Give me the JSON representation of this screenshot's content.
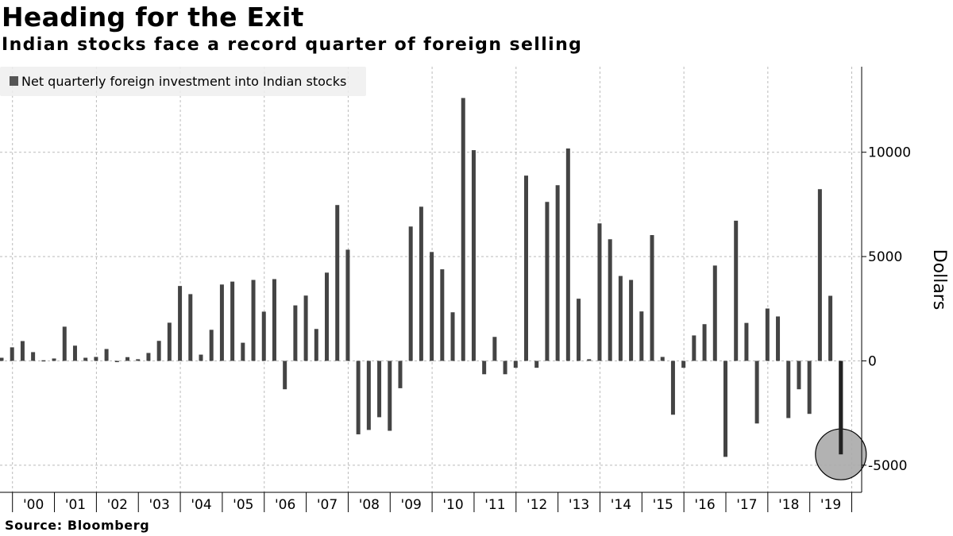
{
  "title": "Heading for the Exit",
  "subtitle": "Indian stocks face a record quarter of foreign selling",
  "source": "Source: Bloomberg",
  "colors": {
    "bar": "#444444",
    "highlight_circle": "#aaaaaa",
    "legend_bg": "#eeeeee",
    "grid": "#bbbbbb"
  },
  "chart_data": {
    "type": "bar",
    "title": "Heading for the Exit",
    "subtitle": "Indian stocks face a record quarter of foreign selling",
    "ylabel": "Dollars",
    "xlabel": "",
    "legend": {
      "entries": [
        "Net quarterly foreign investment into Indian stocks"
      ],
      "placement": "top-left"
    },
    "grid": true,
    "ylim": [
      -6300,
      14100
    ],
    "y_ticks": [
      10000,
      5000,
      0,
      -5000
    ],
    "y_tick_labels": [
      "10000",
      "5000",
      "0",
      "-5000"
    ],
    "y_axis_side": "right",
    "x_tick_labels": [
      "'00",
      "'01",
      "'02",
      "'03",
      "'04",
      "'05",
      "'06",
      "'07",
      "'08",
      "'09",
      "'10",
      "'11",
      "'12",
      "'13",
      "'14",
      "'15",
      "'16",
      "'17",
      "'18",
      "'19"
    ],
    "series": [
      {
        "name": "Net quarterly foreign investment into Indian stocks",
        "x": [
          "1999-Q4",
          "2000-Q1",
          "2000-Q2",
          "2000-Q3",
          "2000-Q4",
          "2001-Q1",
          "2001-Q2",
          "2001-Q3",
          "2001-Q4",
          "2002-Q1",
          "2002-Q2",
          "2002-Q3",
          "2002-Q4",
          "2003-Q1",
          "2003-Q2",
          "2003-Q3",
          "2003-Q4",
          "2004-Q1",
          "2004-Q2",
          "2004-Q3",
          "2004-Q4",
          "2005-Q1",
          "2005-Q2",
          "2005-Q3",
          "2005-Q4",
          "2006-Q1",
          "2006-Q2",
          "2006-Q3",
          "2006-Q4",
          "2007-Q1",
          "2007-Q2",
          "2007-Q3",
          "2007-Q4",
          "2008-Q1",
          "2008-Q2",
          "2008-Q3",
          "2008-Q4",
          "2009-Q1",
          "2009-Q2",
          "2009-Q3",
          "2009-Q4",
          "2010-Q1",
          "2010-Q2",
          "2010-Q3",
          "2010-Q4",
          "2011-Q1",
          "2011-Q2",
          "2011-Q3",
          "2011-Q4",
          "2012-Q1",
          "2012-Q2",
          "2012-Q3",
          "2012-Q4",
          "2013-Q1",
          "2013-Q2",
          "2013-Q3",
          "2013-Q4",
          "2014-Q1",
          "2014-Q2",
          "2014-Q3",
          "2014-Q4",
          "2015-Q1",
          "2015-Q2",
          "2015-Q3",
          "2015-Q4",
          "2016-Q1",
          "2016-Q2",
          "2016-Q3",
          "2016-Q4",
          "2017-Q1",
          "2017-Q2",
          "2017-Q3",
          "2017-Q4",
          "2018-Q1",
          "2018-Q2",
          "2018-Q3",
          "2018-Q4",
          "2019-Q1",
          "2019-Q2",
          "2019-Q3",
          "2019-Q4"
        ],
        "values": [
          150,
          650,
          950,
          420,
          30,
          115,
          1640,
          730,
          150,
          190,
          570,
          -60,
          180,
          80,
          380,
          960,
          1830,
          3590,
          3200,
          300,
          1490,
          3660,
          3800,
          870,
          3880,
          2360,
          3920,
          -1360,
          2660,
          3130,
          1530,
          4230,
          7470,
          5330,
          -3520,
          -3310,
          -2700,
          -3350,
          -1310,
          6440,
          7390,
          5220,
          4390,
          2330,
          12600,
          10100,
          -640,
          1150,
          -640,
          -330,
          8880,
          -330,
          7620,
          8420,
          10180,
          2980,
          80,
          6590,
          5830,
          4070,
          3880,
          2370,
          6030,
          190,
          -2580,
          -330,
          1220,
          1760,
          4570,
          -4600,
          6720,
          1820,
          -3000,
          2510,
          2130,
          -2740,
          -1360,
          -2540,
          8230,
          3120,
          -4480
        ]
      }
    ],
    "highlight": {
      "x": "2019-Q4",
      "shape": "circle"
    }
  }
}
